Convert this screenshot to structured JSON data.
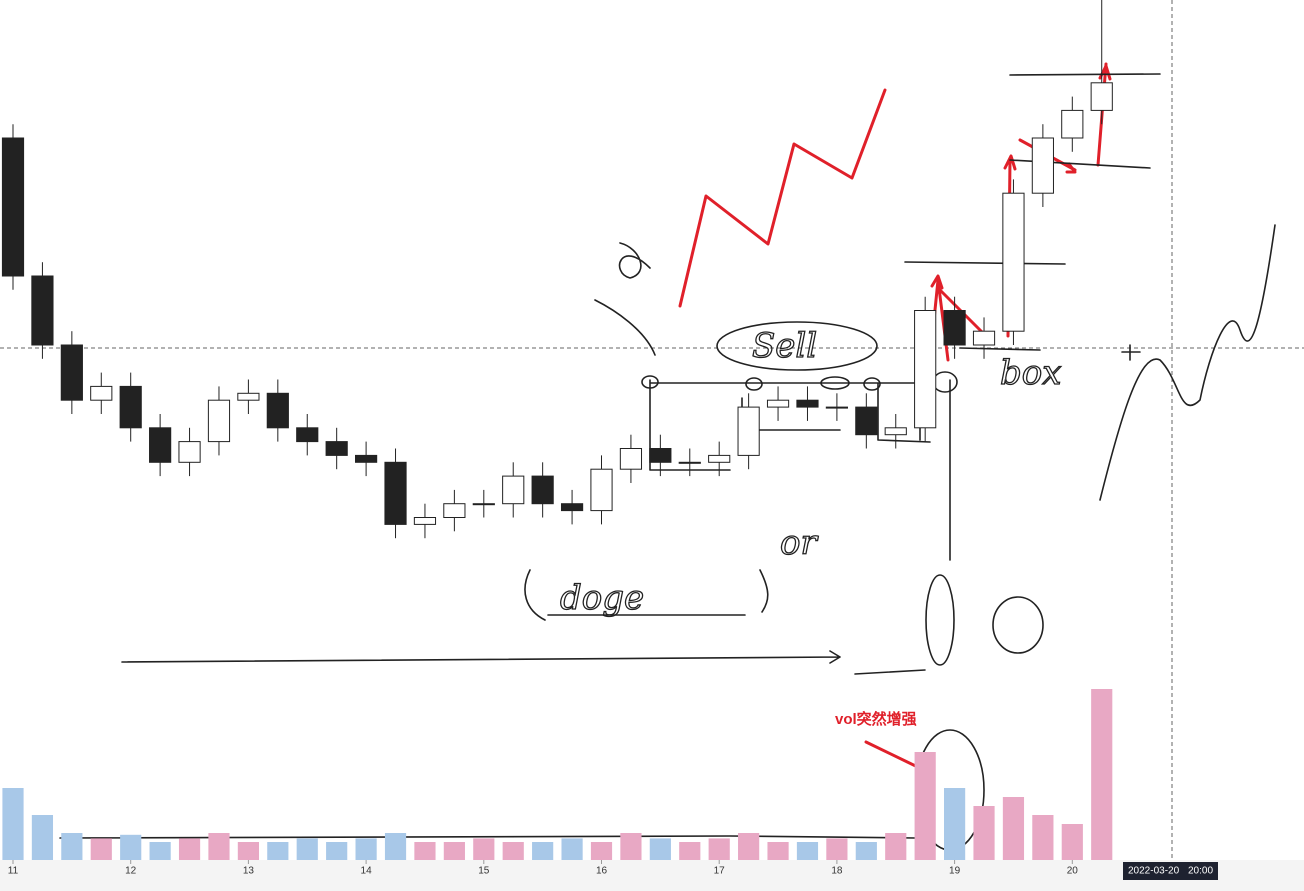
{
  "chart_data": {
    "type": "candlestick",
    "x": [
      11,
      11.25,
      11.5,
      11.75,
      12,
      12.25,
      12.5,
      12.75,
      13,
      13.25,
      13.5,
      13.75,
      14,
      14.25,
      14.5,
      14.75,
      15,
      15.25,
      15.5,
      15.75,
      16,
      16.25,
      16.5,
      16.75,
      17,
      17.25,
      17.5,
      17.75,
      18,
      18.25,
      18.5,
      18.75,
      19,
      19.25,
      19.5,
      19.75,
      20,
      20.25
    ],
    "open": [
      80,
      60,
      50,
      42,
      44,
      38,
      33,
      36,
      42,
      43,
      38,
      36,
      34,
      33,
      24,
      25,
      27,
      27,
      31,
      27,
      26,
      32,
      35,
      33,
      33,
      34,
      41,
      42,
      41,
      41,
      37,
      38,
      55,
      50,
      52,
      72,
      80,
      84
    ],
    "high": [
      82,
      62,
      52,
      46,
      46,
      40,
      38,
      44,
      45,
      45,
      40,
      38,
      36,
      35,
      27,
      29,
      29,
      33,
      33,
      29,
      34,
      37,
      37,
      35,
      36,
      43,
      44,
      44,
      43,
      43,
      40,
      57,
      57,
      54,
      74,
      82,
      86,
      100
    ],
    "low": [
      58,
      48,
      40,
      40,
      36,
      31,
      31,
      34,
      40,
      36,
      34,
      32,
      31,
      22,
      22,
      23,
      25,
      25,
      25,
      24,
      24,
      30,
      31,
      31,
      31,
      32,
      39,
      39,
      39,
      35,
      35,
      36,
      48,
      48,
      50,
      70,
      78,
      82
    ],
    "close": [
      60,
      50,
      42,
      44,
      38,
      33,
      36,
      42,
      43,
      38,
      36,
      34,
      33,
      24,
      25,
      27,
      27,
      31,
      27,
      26,
      32,
      35,
      33,
      33,
      34,
      41,
      42,
      41,
      41,
      37,
      38,
      55,
      50,
      52,
      72,
      80,
      84,
      88
    ],
    "volume": [
      40,
      25,
      15,
      12,
      14,
      10,
      12,
      15,
      10,
      10,
      12,
      10,
      12,
      15,
      10,
      10,
      12,
      10,
      10,
      12,
      10,
      15,
      12,
      10,
      12,
      15,
      10,
      10,
      12,
      10,
      15,
      60,
      40,
      30,
      35,
      25,
      20,
      95
    ],
    "up_color": "#ffffff",
    "down_color": "#222222",
    "volume_up_color": "#e8a8c4",
    "volume_down_color": "#a8c8e8",
    "xlim": [
      10.9,
      21.9
    ],
    "xticks": [
      11,
      12,
      13,
      14,
      15,
      16,
      17,
      18,
      19,
      20
    ],
    "ylim": [
      0,
      100
    ],
    "volume_ylim": [
      0,
      100
    ],
    "annotations": [
      "vol突然增强",
      "Sell",
      "doge",
      "box",
      "or"
    ],
    "crosshair_label": {
      "date": "2022-03-20",
      "time": "20:00"
    }
  }
}
